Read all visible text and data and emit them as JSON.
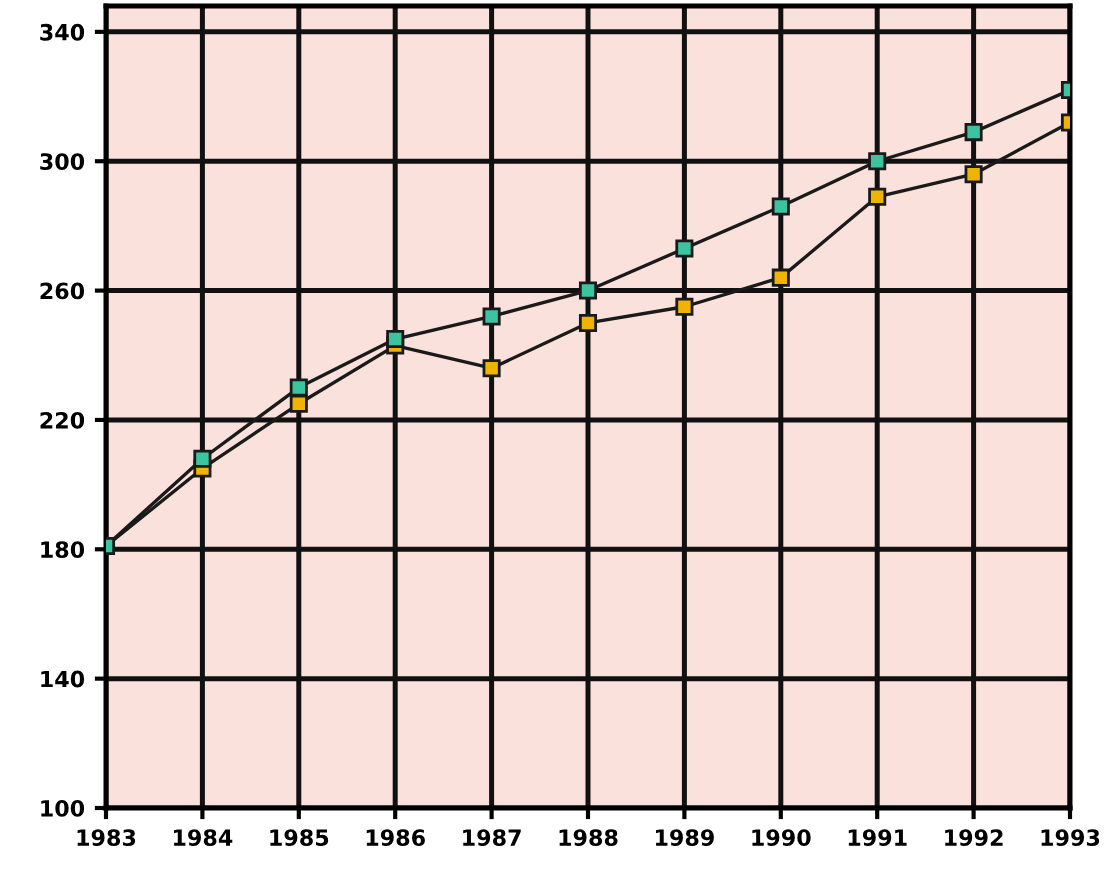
{
  "chart_data": {
    "type": "line",
    "x": [
      1983,
      1984,
      1985,
      1986,
      1987,
      1988,
      1989,
      1990,
      1991,
      1992,
      1993
    ],
    "series": [
      {
        "color": "#3cc4a0",
        "values": [
          181,
          208,
          230,
          245,
          252,
          260,
          273,
          286,
          300,
          309,
          322
        ]
      },
      {
        "color": "#f0b400",
        "values": [
          181,
          205,
          225,
          243,
          236,
          250,
          255,
          264,
          289,
          296,
          312
        ]
      }
    ],
    "xlim": [
      1983,
      1993
    ],
    "xticks": [
      1983,
      1984,
      1985,
      1986,
      1987,
      1988,
      1989,
      1990,
      1991,
      1992,
      1993
    ],
    "ylim": [
      100,
      348
    ],
    "yticks": [
      100,
      140,
      180,
      220,
      260,
      300,
      340
    ],
    "grid": true,
    "marker": "square",
    "line_style": "solid"
  }
}
